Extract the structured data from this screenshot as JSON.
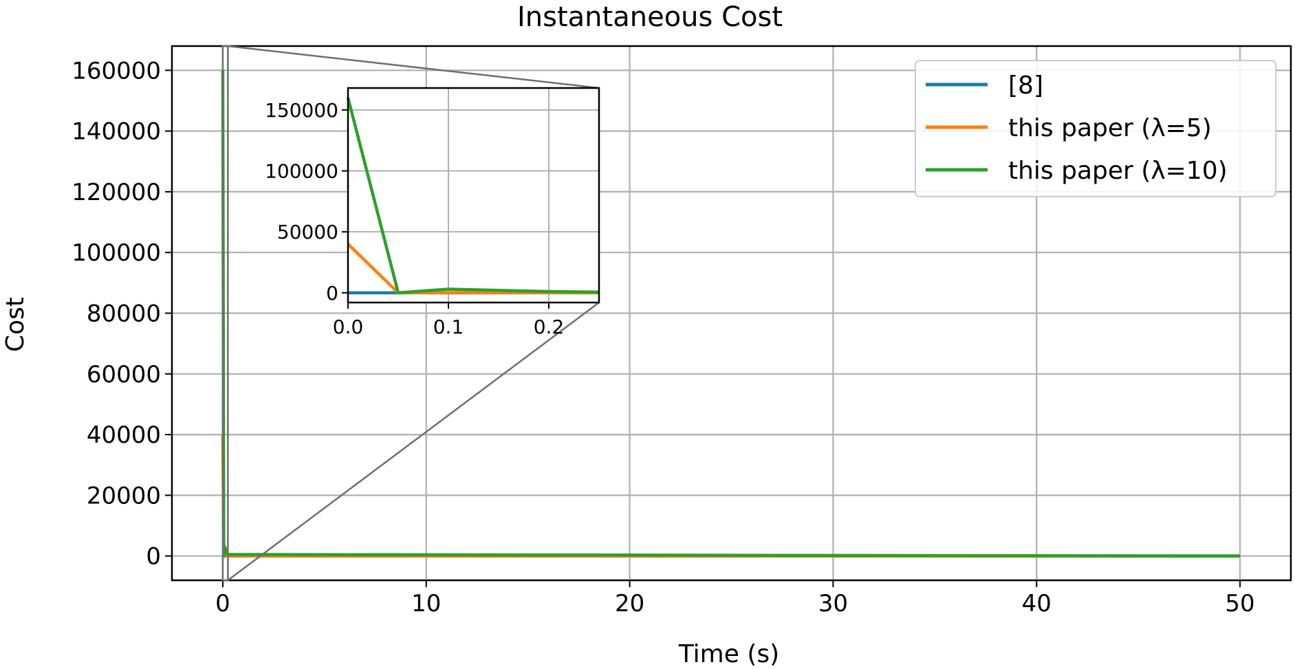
{
  "chart_data": {
    "type": "line",
    "title": "Instantaneous Cost",
    "xlabel": "Time (s)",
    "ylabel": "Cost",
    "xlim": [
      -2.5,
      52.5
    ],
    "ylim": [
      -8000,
      168000
    ],
    "xticks": [
      0,
      10,
      20,
      30,
      40,
      50
    ],
    "xtick_labels": [
      "0",
      "10",
      "20",
      "30",
      "40",
      "50"
    ],
    "yticks": [
      0,
      20000,
      40000,
      60000,
      80000,
      100000,
      120000,
      140000,
      160000
    ],
    "ytick_labels": [
      "0",
      "20000",
      "40000",
      "60000",
      "80000",
      "100000",
      "120000",
      "140000",
      "160000"
    ],
    "grid": true,
    "legend_position": "top-right",
    "colors": {
      "series_1": "#1f77b4",
      "series_2": "#ff7f0e",
      "series_3": "#2ca02c",
      "grid": "#b0b0b0",
      "zoom_connector": "#6e6e6e"
    },
    "series": [
      {
        "name": "[8]",
        "x": [
          0,
          0.05,
          0.1,
          0.15,
          0.2,
          0.25,
          50
        ],
        "y": [
          0,
          0,
          0,
          0,
          0,
          0,
          0
        ]
      },
      {
        "name": "this paper (λ=5)",
        "x": [
          0,
          0.05,
          0.1,
          0.15,
          0.2,
          0.25,
          50
        ],
        "y": [
          40000,
          0,
          200,
          100,
          50,
          20,
          0
        ]
      },
      {
        "name": "this paper (λ=10)",
        "x": [
          0,
          0.05,
          0.1,
          0.15,
          0.2,
          0.25,
          50
        ],
        "y": [
          160000,
          0,
          3000,
          2000,
          1000,
          500,
          0
        ]
      }
    ],
    "inset": {
      "xlim": [
        0,
        0.25
      ],
      "ylim": [
        -8000,
        168000
      ],
      "xticks": [
        0.0,
        0.1,
        0.2
      ],
      "xtick_labels": [
        "0.0",
        "0.1",
        "0.2"
      ],
      "yticks": [
        0,
        50000,
        100000,
        150000
      ],
      "ytick_labels": [
        "0",
        "50000",
        "100000",
        "150000"
      ],
      "grid": true
    }
  }
}
